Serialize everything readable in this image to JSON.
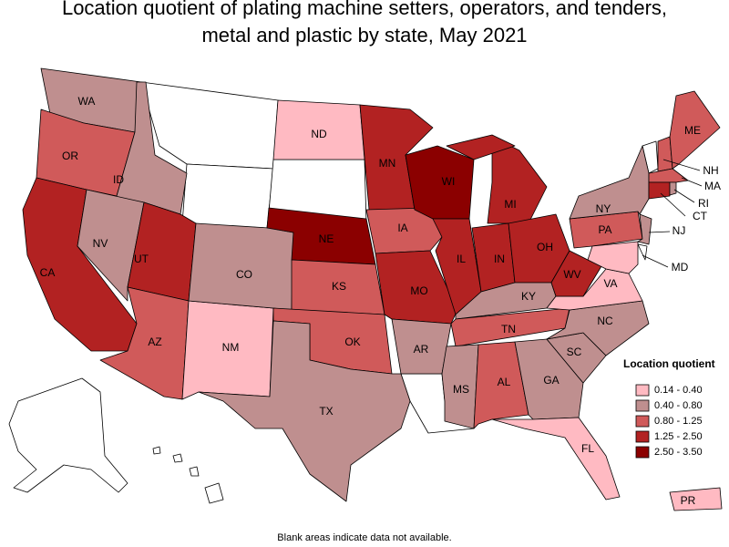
{
  "title": [
    "Location quotient of plating machine setters, operators, and tenders,",
    "metal and plastic by state, May 2021"
  ],
  "legend": {
    "title": "Location quotient",
    "items": [
      {
        "label": "0.14 - 0.40",
        "color": "#ffbac2"
      },
      {
        "label": "0.40 - 0.80",
        "color": "#bf8f8f"
      },
      {
        "label": "0.80 - 1.25",
        "color": "#d05a5a"
      },
      {
        "label": "1.25 - 2.50",
        "color": "#b22222"
      },
      {
        "label": "2.50 - 3.50",
        "color": "#8b0000"
      }
    ]
  },
  "states": [
    {
      "label": "WA",
      "class": 1
    },
    {
      "label": "OR",
      "class": 2
    },
    {
      "label": "CA",
      "class": 3
    },
    {
      "label": "ID",
      "class": 1
    },
    {
      "label": "NV",
      "class": 1
    },
    {
      "label": "UT",
      "class": 3
    },
    {
      "label": "AZ",
      "class": 2
    },
    {
      "label": "NM",
      "class": 0
    },
    {
      "label": "CO",
      "class": 1
    },
    {
      "label": "ND",
      "class": 0
    },
    {
      "label": "NE",
      "class": 4
    },
    {
      "label": "KS",
      "class": 2
    },
    {
      "label": "OK",
      "class": 2
    },
    {
      "label": "TX",
      "class": 1
    },
    {
      "label": "MN",
      "class": 3
    },
    {
      "label": "IA",
      "class": 2
    },
    {
      "label": "MO",
      "class": 3
    },
    {
      "label": "AR",
      "class": 1
    },
    {
      "label": "WI",
      "class": 4
    },
    {
      "label": "IL",
      "class": 3
    },
    {
      "label": "MI",
      "class": 3
    },
    {
      "label": "IN",
      "class": 3
    },
    {
      "label": "OH",
      "class": 3
    },
    {
      "label": "KY",
      "class": 1
    },
    {
      "label": "TN",
      "class": 2
    },
    {
      "label": "MS",
      "class": 1
    },
    {
      "label": "AL",
      "class": 2
    },
    {
      "label": "GA",
      "class": 1
    },
    {
      "label": "FL",
      "class": 0
    },
    {
      "label": "SC",
      "class": 1
    },
    {
      "label": "NC",
      "class": 1
    },
    {
      "label": "VA",
      "class": 0
    },
    {
      "label": "WV",
      "class": 3
    },
    {
      "label": "PA",
      "class": 2
    },
    {
      "label": "NY",
      "class": 1
    },
    {
      "label": "MD",
      "class": 0
    },
    {
      "label": "NJ",
      "class": 1
    },
    {
      "label": "NH",
      "class": 2
    },
    {
      "label": "ME",
      "class": 2
    },
    {
      "label": "MA",
      "class": 2
    },
    {
      "label": "CT",
      "class": 3
    },
    {
      "label": "RI",
      "class": 1
    },
    {
      "label": "PR",
      "class": 0
    }
  ],
  "note": "Blank areas indicate data not available."
}
